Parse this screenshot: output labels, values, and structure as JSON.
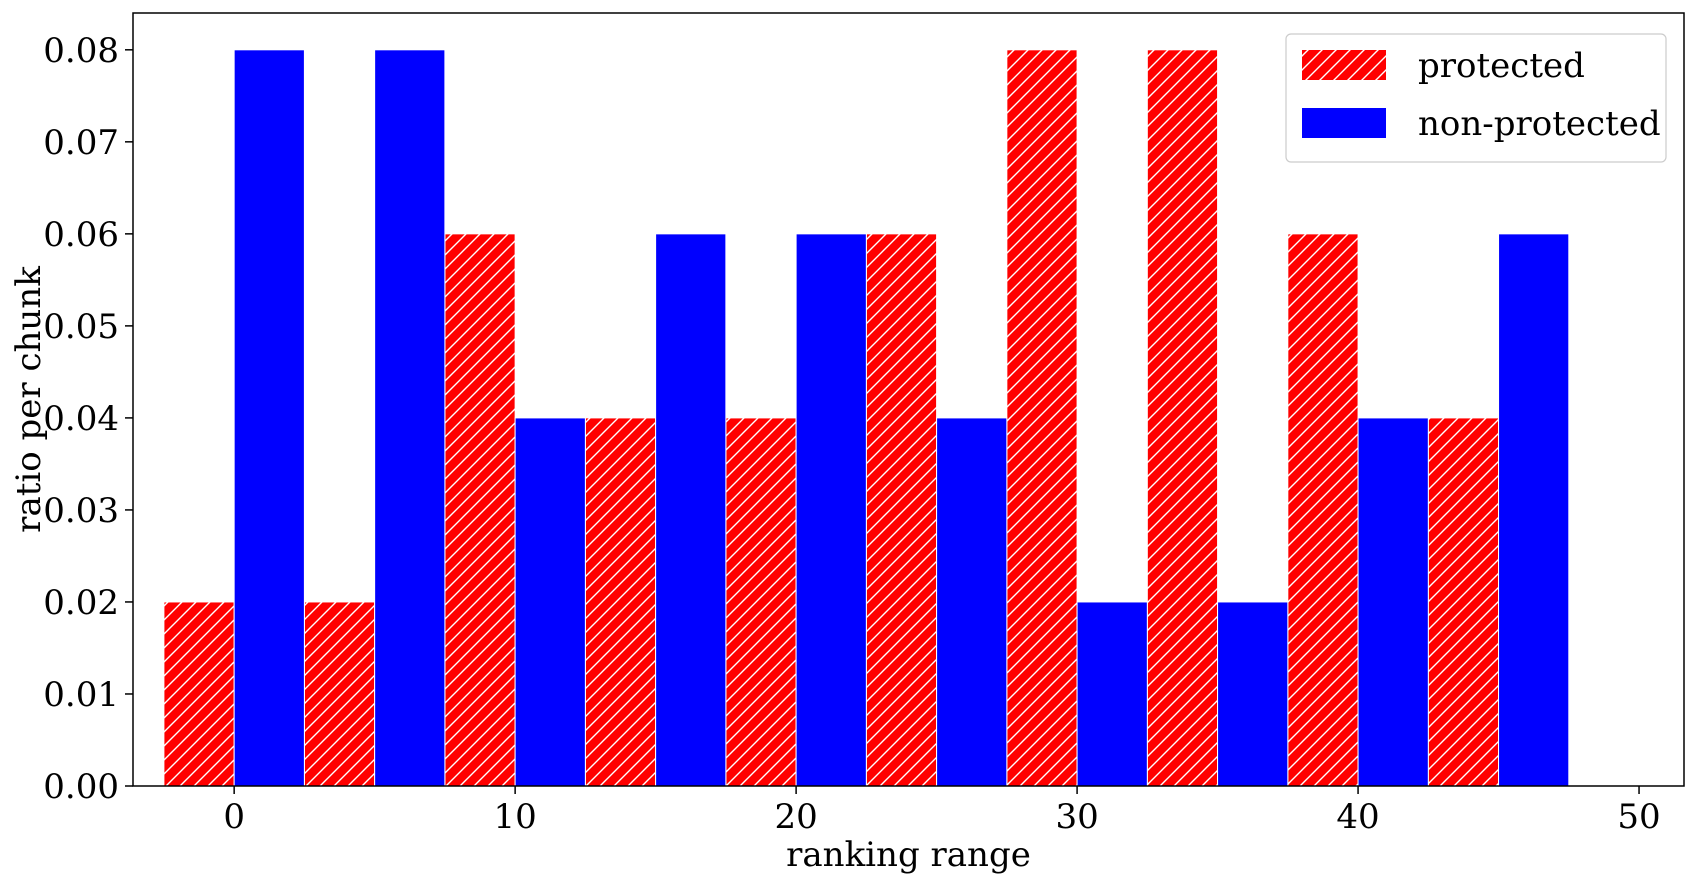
{
  "colors": {
    "protected": "#ff0000",
    "non_protected": "#0000ff",
    "hatch": "#ffffff",
    "axis": "#000000"
  },
  "chart_data": {
    "type": "bar",
    "title": "",
    "xlabel": "ranking range",
    "ylabel": "ratio per chunk",
    "xlim": [
      -3.6,
      51.6
    ],
    "ylim": [
      0.0,
      0.084
    ],
    "bin_width": 5,
    "x_ticks": [
      0,
      10,
      20,
      30,
      40,
      50
    ],
    "x_tick_labels": [
      "0",
      "10",
      "20",
      "30",
      "40",
      "50"
    ],
    "y_ticks": [
      0.0,
      0.01,
      0.02,
      0.03,
      0.04,
      0.05,
      0.06,
      0.07,
      0.08
    ],
    "y_tick_labels": [
      "0.00",
      "0.01",
      "0.02",
      "0.03",
      "0.04",
      "0.05",
      "0.06",
      "0.07",
      "0.08"
    ],
    "bin_starts": [
      0,
      5,
      10,
      15,
      20,
      25,
      30,
      35,
      40,
      45
    ],
    "legend_position": "top-right",
    "grid": false,
    "series": [
      {
        "name": "protected",
        "color": "#ff0000",
        "hatch": "diagonal",
        "values": [
          0.02,
          0.02,
          0.06,
          0.04,
          0.04,
          0.06,
          0.08,
          0.08,
          0.06,
          0.04
        ]
      },
      {
        "name": "non-protected",
        "color": "#0000ff",
        "hatch": "none",
        "values": [
          0.08,
          0.08,
          0.04,
          0.06,
          0.06,
          0.04,
          0.02,
          0.02,
          0.04,
          0.06
        ]
      }
    ]
  }
}
